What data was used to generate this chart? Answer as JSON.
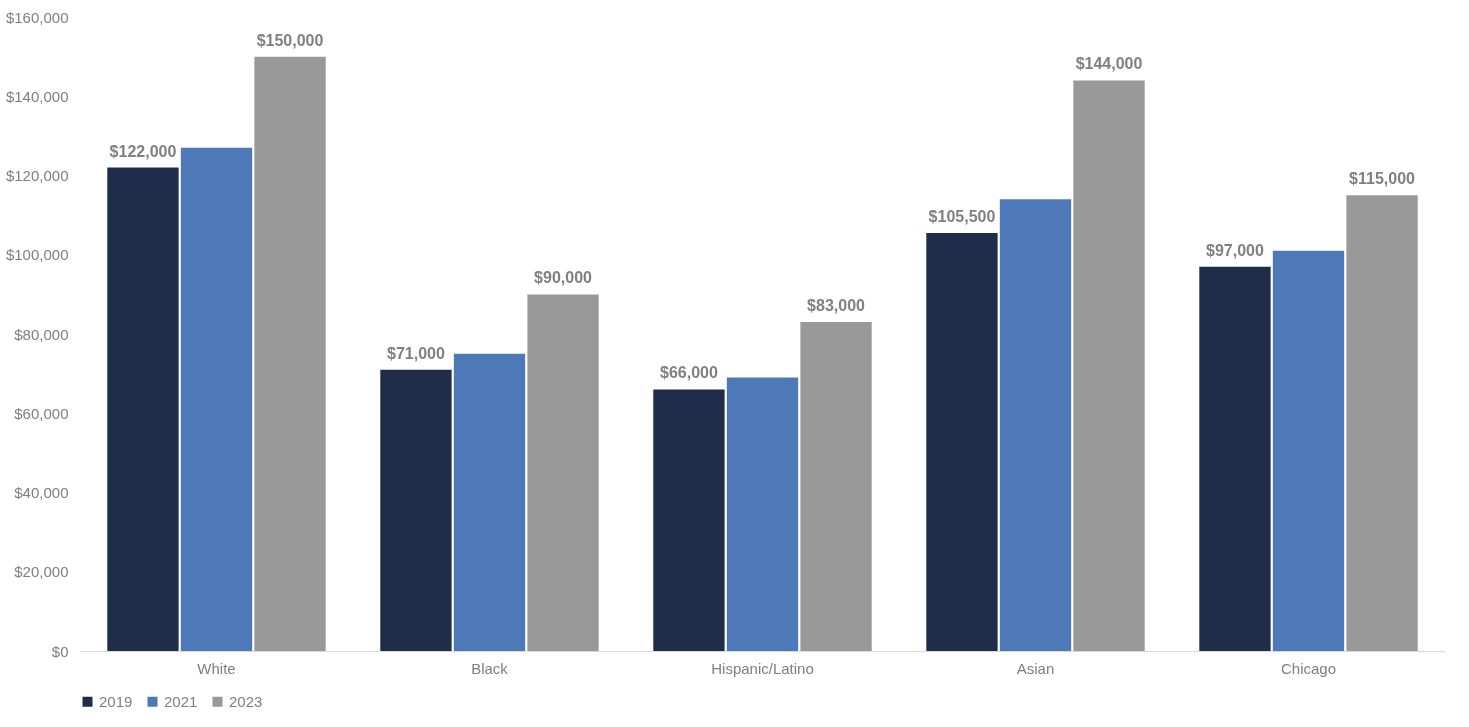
{
  "chart_data": {
    "type": "bar",
    "categories": [
      "White",
      "Black",
      "Hispanic/Latino",
      "Asian",
      "Chicago"
    ],
    "series": [
      {
        "name": "2019",
        "color": "#1f2d4a",
        "values": [
          122000,
          71000,
          66000,
          105500,
          97000
        ],
        "value_labels": [
          "$122,000",
          "$71,000",
          "$66,000",
          "$105,500",
          "$97,000"
        ]
      },
      {
        "name": "2021",
        "color": "#4e79b8",
        "values": [
          127000,
          75000,
          69000,
          114000,
          101000
        ]
      },
      {
        "name": "2023",
        "color": "#999999",
        "values": [
          150000,
          90000,
          83000,
          144000,
          115000
        ],
        "value_labels": [
          "$150,000",
          "$90,000",
          "$83,000",
          "$144,000",
          "$115,000"
        ]
      }
    ],
    "ylim": [
      0,
      160000
    ],
    "yticks": [
      {
        "value": 0,
        "label": "$0"
      },
      {
        "value": 20000,
        "label": "$20,000"
      },
      {
        "value": 40000,
        "label": "$40,000"
      },
      {
        "value": 60000,
        "label": "$60,000"
      },
      {
        "value": 80000,
        "label": "$80,000"
      },
      {
        "value": 100000,
        "label": "$100,000"
      },
      {
        "value": 120000,
        "label": "$120,000"
      },
      {
        "value": 140000,
        "label": "$140,000"
      },
      {
        "value": 160000,
        "label": "$160,000"
      }
    ],
    "grid": false,
    "legend": "bottom"
  }
}
